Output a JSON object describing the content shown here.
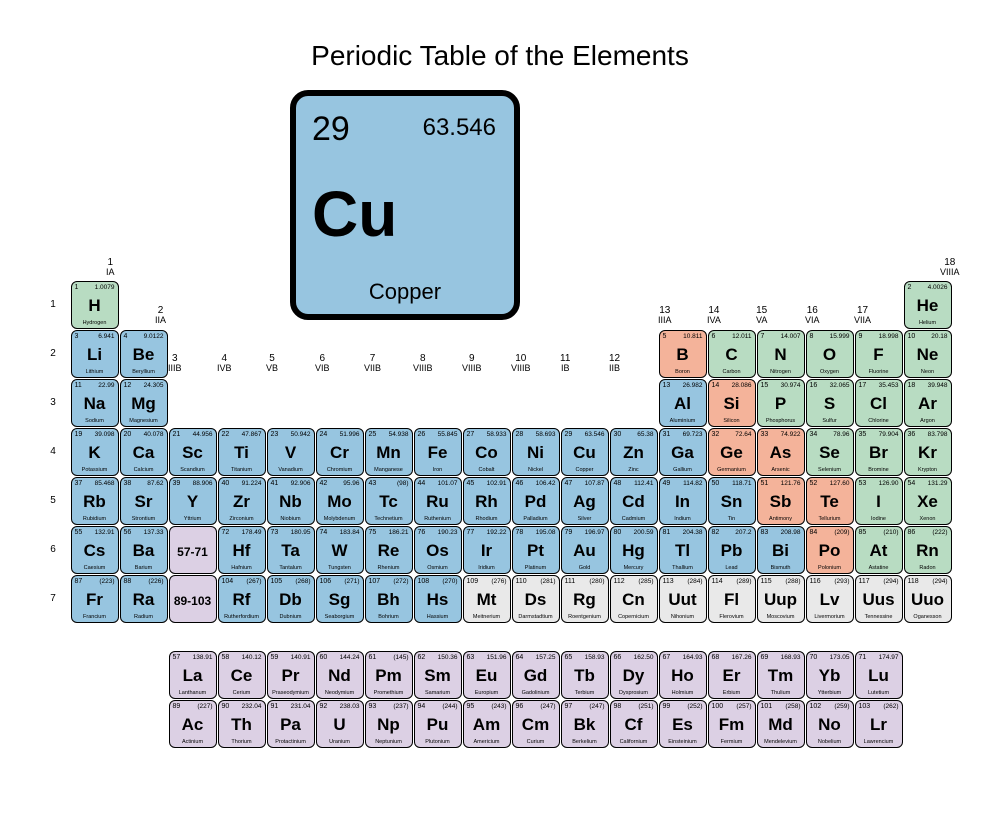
{
  "title": "Periodic Table of the Elements",
  "featured": {
    "number": "29",
    "mass": "63.546",
    "symbol": "Cu",
    "name": "Copper",
    "bg": "#97c5e0"
  },
  "colors": {
    "blue": "#97c5e0",
    "green": "#b8dcc2",
    "salmon": "#f4b39a",
    "lavender": "#dcd0e4",
    "grey": "#e9e9e9"
  },
  "groups": [
    {
      "num": "1",
      "roman": "IA"
    },
    {
      "num": "2",
      "roman": "IIA"
    },
    {
      "num": "3",
      "roman": "IIIB"
    },
    {
      "num": "4",
      "roman": "IVB"
    },
    {
      "num": "5",
      "roman": "VB"
    },
    {
      "num": "6",
      "roman": "VIB"
    },
    {
      "num": "7",
      "roman": "VIIB"
    },
    {
      "num": "8",
      "roman": "VIIIB"
    },
    {
      "num": "9",
      "roman": "VIIIB"
    },
    {
      "num": "10",
      "roman": "VIIIB"
    },
    {
      "num": "11",
      "roman": "IB"
    },
    {
      "num": "12",
      "roman": "IIB"
    },
    {
      "num": "13",
      "roman": "IIIA"
    },
    {
      "num": "14",
      "roman": "IVA"
    },
    {
      "num": "15",
      "roman": "VA"
    },
    {
      "num": "16",
      "roman": "VIA"
    },
    {
      "num": "17",
      "roman": "VIIA"
    },
    {
      "num": "18",
      "roman": "VIIIA"
    }
  ],
  "periods": [
    "1",
    "2",
    "3",
    "4",
    "5",
    "6",
    "7"
  ],
  "elements": [
    {
      "p": 1,
      "g": 1,
      "n": "1",
      "m": "1.0079",
      "s": "H",
      "nm": "Hydrogen",
      "c": "green"
    },
    {
      "p": 1,
      "g": 18,
      "n": "2",
      "m": "4.0026",
      "s": "He",
      "nm": "Helium",
      "c": "green"
    },
    {
      "p": 2,
      "g": 1,
      "n": "3",
      "m": "6.941",
      "s": "Li",
      "nm": "Lithium",
      "c": "blue"
    },
    {
      "p": 2,
      "g": 2,
      "n": "4",
      "m": "9.0122",
      "s": "Be",
      "nm": "Beryllium",
      "c": "blue"
    },
    {
      "p": 2,
      "g": 13,
      "n": "5",
      "m": "10.811",
      "s": "B",
      "nm": "Boron",
      "c": "salmon"
    },
    {
      "p": 2,
      "g": 14,
      "n": "6",
      "m": "12.011",
      "s": "C",
      "nm": "Carbon",
      "c": "green"
    },
    {
      "p": 2,
      "g": 15,
      "n": "7",
      "m": "14.007",
      "s": "N",
      "nm": "Nitrogen",
      "c": "green"
    },
    {
      "p": 2,
      "g": 16,
      "n": "8",
      "m": "15.999",
      "s": "O",
      "nm": "Oxygen",
      "c": "green"
    },
    {
      "p": 2,
      "g": 17,
      "n": "9",
      "m": "18.998",
      "s": "F",
      "nm": "Fluorine",
      "c": "green"
    },
    {
      "p": 2,
      "g": 18,
      "n": "10",
      "m": "20.18",
      "s": "Ne",
      "nm": "Neon",
      "c": "green"
    },
    {
      "p": 3,
      "g": 1,
      "n": "11",
      "m": "22.99",
      "s": "Na",
      "nm": "Sodium",
      "c": "blue"
    },
    {
      "p": 3,
      "g": 2,
      "n": "12",
      "m": "24.305",
      "s": "Mg",
      "nm": "Magnesium",
      "c": "blue"
    },
    {
      "p": 3,
      "g": 13,
      "n": "13",
      "m": "26.982",
      "s": "Al",
      "nm": "Aluminium",
      "c": "blue"
    },
    {
      "p": 3,
      "g": 14,
      "n": "14",
      "m": "28.086",
      "s": "Si",
      "nm": "Silicon",
      "c": "salmon"
    },
    {
      "p": 3,
      "g": 15,
      "n": "15",
      "m": "30.974",
      "s": "P",
      "nm": "Phosphorus",
      "c": "green"
    },
    {
      "p": 3,
      "g": 16,
      "n": "16",
      "m": "32.065",
      "s": "S",
      "nm": "Sulfur",
      "c": "green"
    },
    {
      "p": 3,
      "g": 17,
      "n": "17",
      "m": "35.453",
      "s": "Cl",
      "nm": "Chlorine",
      "c": "green"
    },
    {
      "p": 3,
      "g": 18,
      "n": "18",
      "m": "39.948",
      "s": "Ar",
      "nm": "Argon",
      "c": "green"
    },
    {
      "p": 4,
      "g": 1,
      "n": "19",
      "m": "39.098",
      "s": "K",
      "nm": "Potassium",
      "c": "blue"
    },
    {
      "p": 4,
      "g": 2,
      "n": "20",
      "m": "40.078",
      "s": "Ca",
      "nm": "Calcium",
      "c": "blue"
    },
    {
      "p": 4,
      "g": 3,
      "n": "21",
      "m": "44.956",
      "s": "Sc",
      "nm": "Scandium",
      "c": "blue"
    },
    {
      "p": 4,
      "g": 4,
      "n": "22",
      "m": "47.867",
      "s": "Ti",
      "nm": "Titanium",
      "c": "blue"
    },
    {
      "p": 4,
      "g": 5,
      "n": "23",
      "m": "50.942",
      "s": "V",
      "nm": "Vanadium",
      "c": "blue"
    },
    {
      "p": 4,
      "g": 6,
      "n": "24",
      "m": "51.996",
      "s": "Cr",
      "nm": "Chromium",
      "c": "blue"
    },
    {
      "p": 4,
      "g": 7,
      "n": "25",
      "m": "54.938",
      "s": "Mn",
      "nm": "Manganese",
      "c": "blue"
    },
    {
      "p": 4,
      "g": 8,
      "n": "26",
      "m": "55.845",
      "s": "Fe",
      "nm": "Iron",
      "c": "blue"
    },
    {
      "p": 4,
      "g": 9,
      "n": "27",
      "m": "58.933",
      "s": "Co",
      "nm": "Cobalt",
      "c": "blue"
    },
    {
      "p": 4,
      "g": 10,
      "n": "28",
      "m": "58.693",
      "s": "Ni",
      "nm": "Nickel",
      "c": "blue"
    },
    {
      "p": 4,
      "g": 11,
      "n": "29",
      "m": "63.546",
      "s": "Cu",
      "nm": "Copper",
      "c": "blue"
    },
    {
      "p": 4,
      "g": 12,
      "n": "30",
      "m": "65.38",
      "s": "Zn",
      "nm": "Zinc",
      "c": "blue"
    },
    {
      "p": 4,
      "g": 13,
      "n": "31",
      "m": "69.723",
      "s": "Ga",
      "nm": "Gallium",
      "c": "blue"
    },
    {
      "p": 4,
      "g": 14,
      "n": "32",
      "m": "72.64",
      "s": "Ge",
      "nm": "Germanium",
      "c": "salmon"
    },
    {
      "p": 4,
      "g": 15,
      "n": "33",
      "m": "74.922",
      "s": "As",
      "nm": "Arsenic",
      "c": "salmon"
    },
    {
      "p": 4,
      "g": 16,
      "n": "34",
      "m": "78.96",
      "s": "Se",
      "nm": "Selenium",
      "c": "green"
    },
    {
      "p": 4,
      "g": 17,
      "n": "35",
      "m": "79.904",
      "s": "Br",
      "nm": "Bromine",
      "c": "green"
    },
    {
      "p": 4,
      "g": 18,
      "n": "36",
      "m": "83.798",
      "s": "Kr",
      "nm": "Krypton",
      "c": "green"
    },
    {
      "p": 5,
      "g": 1,
      "n": "37",
      "m": "85.468",
      "s": "Rb",
      "nm": "Rubidium",
      "c": "blue"
    },
    {
      "p": 5,
      "g": 2,
      "n": "38",
      "m": "87.62",
      "s": "Sr",
      "nm": "Strontium",
      "c": "blue"
    },
    {
      "p": 5,
      "g": 3,
      "n": "39",
      "m": "88.906",
      "s": "Y",
      "nm": "Yttrium",
      "c": "blue"
    },
    {
      "p": 5,
      "g": 4,
      "n": "40",
      "m": "91.224",
      "s": "Zr",
      "nm": "Zirconium",
      "c": "blue"
    },
    {
      "p": 5,
      "g": 5,
      "n": "41",
      "m": "92.906",
      "s": "Nb",
      "nm": "Niobium",
      "c": "blue"
    },
    {
      "p": 5,
      "g": 6,
      "n": "42",
      "m": "95.96",
      "s": "Mo",
      "nm": "Molybdenum",
      "c": "blue"
    },
    {
      "p": 5,
      "g": 7,
      "n": "43",
      "m": "(98)",
      "s": "Tc",
      "nm": "Technetium",
      "c": "blue"
    },
    {
      "p": 5,
      "g": 8,
      "n": "44",
      "m": "101.07",
      "s": "Ru",
      "nm": "Ruthenium",
      "c": "blue"
    },
    {
      "p": 5,
      "g": 9,
      "n": "45",
      "m": "102.91",
      "s": "Rh",
      "nm": "Rhodium",
      "c": "blue"
    },
    {
      "p": 5,
      "g": 10,
      "n": "46",
      "m": "106.42",
      "s": "Pd",
      "nm": "Palladium",
      "c": "blue"
    },
    {
      "p": 5,
      "g": 11,
      "n": "47",
      "m": "107.87",
      "s": "Ag",
      "nm": "Silver",
      "c": "blue"
    },
    {
      "p": 5,
      "g": 12,
      "n": "48",
      "m": "112.41",
      "s": "Cd",
      "nm": "Cadmium",
      "c": "blue"
    },
    {
      "p": 5,
      "g": 13,
      "n": "49",
      "m": "114.82",
      "s": "In",
      "nm": "Indium",
      "c": "blue"
    },
    {
      "p": 5,
      "g": 14,
      "n": "50",
      "m": "118.71",
      "s": "Sn",
      "nm": "Tin",
      "c": "blue"
    },
    {
      "p": 5,
      "g": 15,
      "n": "51",
      "m": "121.76",
      "s": "Sb",
      "nm": "Antimony",
      "c": "salmon"
    },
    {
      "p": 5,
      "g": 16,
      "n": "52",
      "m": "127.60",
      "s": "Te",
      "nm": "Tellurium",
      "c": "salmon"
    },
    {
      "p": 5,
      "g": 17,
      "n": "53",
      "m": "126.90",
      "s": "I",
      "nm": "Iodine",
      "c": "green"
    },
    {
      "p": 5,
      "g": 18,
      "n": "54",
      "m": "131.29",
      "s": "Xe",
      "nm": "Xenon",
      "c": "green"
    },
    {
      "p": 6,
      "g": 1,
      "n": "55",
      "m": "132.91",
      "s": "Cs",
      "nm": "Caesium",
      "c": "blue"
    },
    {
      "p": 6,
      "g": 2,
      "n": "56",
      "m": "137.33",
      "s": "Ba",
      "nm": "Barium",
      "c": "blue"
    },
    {
      "p": 6,
      "g": 3,
      "range": "57-71",
      "c": "lavender"
    },
    {
      "p": 6,
      "g": 4,
      "n": "72",
      "m": "178.49",
      "s": "Hf",
      "nm": "Hafnium",
      "c": "blue"
    },
    {
      "p": 6,
      "g": 5,
      "n": "73",
      "m": "180.95",
      "s": "Ta",
      "nm": "Tantalum",
      "c": "blue"
    },
    {
      "p": 6,
      "g": 6,
      "n": "74",
      "m": "183.84",
      "s": "W",
      "nm": "Tungsten",
      "c": "blue"
    },
    {
      "p": 6,
      "g": 7,
      "n": "75",
      "m": "186.21",
      "s": "Re",
      "nm": "Rhenium",
      "c": "blue"
    },
    {
      "p": 6,
      "g": 8,
      "n": "76",
      "m": "190.23",
      "s": "Os",
      "nm": "Osmium",
      "c": "blue"
    },
    {
      "p": 6,
      "g": 9,
      "n": "77",
      "m": "192.22",
      "s": "Ir",
      "nm": "Iridium",
      "c": "blue"
    },
    {
      "p": 6,
      "g": 10,
      "n": "78",
      "m": "195.08",
      "s": "Pt",
      "nm": "Platinum",
      "c": "blue"
    },
    {
      "p": 6,
      "g": 11,
      "n": "79",
      "m": "196.97",
      "s": "Au",
      "nm": "Gold",
      "c": "blue"
    },
    {
      "p": 6,
      "g": 12,
      "n": "80",
      "m": "200.59",
      "s": "Hg",
      "nm": "Mercury",
      "c": "blue"
    },
    {
      "p": 6,
      "g": 13,
      "n": "81",
      "m": "204.38",
      "s": "Tl",
      "nm": "Thallium",
      "c": "blue"
    },
    {
      "p": 6,
      "g": 14,
      "n": "82",
      "m": "207.2",
      "s": "Pb",
      "nm": "Lead",
      "c": "blue"
    },
    {
      "p": 6,
      "g": 15,
      "n": "83",
      "m": "208.98",
      "s": "Bi",
      "nm": "Bismuth",
      "c": "blue"
    },
    {
      "p": 6,
      "g": 16,
      "n": "84",
      "m": "(209)",
      "s": "Po",
      "nm": "Polonium",
      "c": "salmon"
    },
    {
      "p": 6,
      "g": 17,
      "n": "85",
      "m": "(210)",
      "s": "At",
      "nm": "Astatine",
      "c": "green"
    },
    {
      "p": 6,
      "g": 18,
      "n": "86",
      "m": "(222)",
      "s": "Rn",
      "nm": "Radon",
      "c": "green"
    },
    {
      "p": 7,
      "g": 1,
      "n": "87",
      "m": "(223)",
      "s": "Fr",
      "nm": "Francium",
      "c": "blue"
    },
    {
      "p": 7,
      "g": 2,
      "n": "88",
      "m": "(226)",
      "s": "Ra",
      "nm": "Radium",
      "c": "blue"
    },
    {
      "p": 7,
      "g": 3,
      "range": "89-103",
      "c": "lavender"
    },
    {
      "p": 7,
      "g": 4,
      "n": "104",
      "m": "(267)",
      "s": "Rf",
      "nm": "Rutherfordium",
      "c": "blue"
    },
    {
      "p": 7,
      "g": 5,
      "n": "105",
      "m": "(268)",
      "s": "Db",
      "nm": "Dubnium",
      "c": "blue"
    },
    {
      "p": 7,
      "g": 6,
      "n": "106",
      "m": "(271)",
      "s": "Sg",
      "nm": "Seaborgium",
      "c": "blue"
    },
    {
      "p": 7,
      "g": 7,
      "n": "107",
      "m": "(272)",
      "s": "Bh",
      "nm": "Bohrium",
      "c": "blue"
    },
    {
      "p": 7,
      "g": 8,
      "n": "108",
      "m": "(270)",
      "s": "Hs",
      "nm": "Hassium",
      "c": "blue"
    },
    {
      "p": 7,
      "g": 9,
      "n": "109",
      "m": "(276)",
      "s": "Mt",
      "nm": "Meitnerium",
      "c": "grey"
    },
    {
      "p": 7,
      "g": 10,
      "n": "110",
      "m": "(281)",
      "s": "Ds",
      "nm": "Darmstadtium",
      "c": "grey"
    },
    {
      "p": 7,
      "g": 11,
      "n": "111",
      "m": "(280)",
      "s": "Rg",
      "nm": "Roentgenium",
      "c": "grey"
    },
    {
      "p": 7,
      "g": 12,
      "n": "112",
      "m": "(285)",
      "s": "Cn",
      "nm": "Copernicium",
      "c": "grey"
    },
    {
      "p": 7,
      "g": 13,
      "n": "113",
      "m": "(284)",
      "s": "Uut",
      "nm": "Nihonium",
      "c": "grey"
    },
    {
      "p": 7,
      "g": 14,
      "n": "114",
      "m": "(289)",
      "s": "Fl",
      "nm": "Flerovium",
      "c": "grey"
    },
    {
      "p": 7,
      "g": 15,
      "n": "115",
      "m": "(288)",
      "s": "Uup",
      "nm": "Moscovium",
      "c": "grey"
    },
    {
      "p": 7,
      "g": 16,
      "n": "116",
      "m": "(293)",
      "s": "Lv",
      "nm": "Livermorium",
      "c": "grey"
    },
    {
      "p": 7,
      "g": 17,
      "n": "117",
      "m": "(294)",
      "s": "Uus",
      "nm": "Tennessine",
      "c": "grey"
    },
    {
      "p": 7,
      "g": 18,
      "n": "118",
      "m": "(294)",
      "s": "Uuo",
      "nm": "Oganesson",
      "c": "grey"
    }
  ],
  "lanthanides": [
    {
      "n": "57",
      "m": "138.91",
      "s": "La",
      "nm": "Lanthanum"
    },
    {
      "n": "58",
      "m": "140.12",
      "s": "Ce",
      "nm": "Cerium"
    },
    {
      "n": "59",
      "m": "140.91",
      "s": "Pr",
      "nm": "Praseodymium"
    },
    {
      "n": "60",
      "m": "144.24",
      "s": "Nd",
      "nm": "Neodymium"
    },
    {
      "n": "61",
      "m": "(145)",
      "s": "Pm",
      "nm": "Promethium"
    },
    {
      "n": "62",
      "m": "150.36",
      "s": "Sm",
      "nm": "Samarium"
    },
    {
      "n": "63",
      "m": "151.96",
      "s": "Eu",
      "nm": "Europium"
    },
    {
      "n": "64",
      "m": "157.25",
      "s": "Gd",
      "nm": "Gadolinium"
    },
    {
      "n": "65",
      "m": "158.93",
      "s": "Tb",
      "nm": "Terbium"
    },
    {
      "n": "66",
      "m": "162.50",
      "s": "Dy",
      "nm": "Dysprosium"
    },
    {
      "n": "67",
      "m": "164.93",
      "s": "Ho",
      "nm": "Holmium"
    },
    {
      "n": "68",
      "m": "167.26",
      "s": "Er",
      "nm": "Erbium"
    },
    {
      "n": "69",
      "m": "168.93",
      "s": "Tm",
      "nm": "Thulium"
    },
    {
      "n": "70",
      "m": "173.05",
      "s": "Yb",
      "nm": "Ytterbium"
    },
    {
      "n": "71",
      "m": "174.97",
      "s": "Lu",
      "nm": "Lutetium"
    }
  ],
  "actinides": [
    {
      "n": "89",
      "m": "(227)",
      "s": "Ac",
      "nm": "Actinium"
    },
    {
      "n": "90",
      "m": "232.04",
      "s": "Th",
      "nm": "Thorium"
    },
    {
      "n": "91",
      "m": "231.04",
      "s": "Pa",
      "nm": "Protactinium"
    },
    {
      "n": "92",
      "m": "238.03",
      "s": "U",
      "nm": "Uranium"
    },
    {
      "n": "93",
      "m": "(237)",
      "s": "Np",
      "nm": "Neptunium"
    },
    {
      "n": "94",
      "m": "(244)",
      "s": "Pu",
      "nm": "Plutonium"
    },
    {
      "n": "95",
      "m": "(243)",
      "s": "Am",
      "nm": "Americium"
    },
    {
      "n": "96",
      "m": "(247)",
      "s": "Cm",
      "nm": "Curium"
    },
    {
      "n": "97",
      "m": "(247)",
      "s": "Bk",
      "nm": "Berkelium"
    },
    {
      "n": "98",
      "m": "(251)",
      "s": "Cf",
      "nm": "Californium"
    },
    {
      "n": "99",
      "m": "(252)",
      "s": "Es",
      "nm": "Einsteinium"
    },
    {
      "n": "100",
      "m": "(257)",
      "s": "Fm",
      "nm": "Fermium"
    },
    {
      "n": "101",
      "m": "(258)",
      "s": "Md",
      "nm": "Mendelevium"
    },
    {
      "n": "102",
      "m": "(259)",
      "s": "No",
      "nm": "Nobelium"
    },
    {
      "n": "103",
      "m": "(262)",
      "s": "Lr",
      "nm": "Lawrencium"
    }
  ]
}
